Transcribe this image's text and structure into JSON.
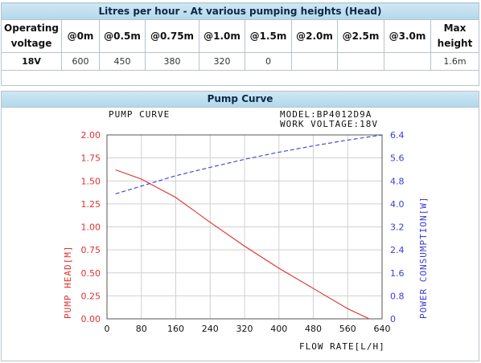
{
  "table": {
    "title": "Litres per hour - At various pumping heights (Head)",
    "headers": [
      "Operating voltage",
      "@0m",
      "@0.5m",
      "@0.75m",
      "@1.0m",
      "@1.5m",
      "@2.0m",
      "@2.5m",
      "@3.0m",
      "Max height"
    ],
    "row": [
      "18V",
      "600",
      "450",
      "380",
      "320",
      "0",
      "",
      "",
      "",
      "1.6m"
    ]
  },
  "curve_section": {
    "title": "Pump Curve"
  },
  "chart_data": {
    "type": "line",
    "title": "PUMP CURVE",
    "model_label": "MODEL:BP4012D9A",
    "voltage_label": "WORK VOLTAGE:18V",
    "xlabel": "FLOW RATE[L/H]",
    "ylabel_left": "PUMP HEAD[M]",
    "ylabel_right": "POWER CONSUMPTION[W]",
    "xlim": [
      0,
      640
    ],
    "ylim_left": [
      0,
      2
    ],
    "ylim_right": [
      0,
      6.4
    ],
    "x_ticks": [
      "0",
      "80",
      "160",
      "240",
      "320",
      "400",
      "480",
      "560",
      "640"
    ],
    "y_left_ticks": [
      "0.00",
      "0.25",
      "0.50",
      "0.75",
      "1.00",
      "1.25",
      "1.50",
      "1.75",
      "2.00"
    ],
    "y_right_ticks": [
      "0",
      "0.8",
      "1.6",
      "2.4",
      "3.2",
      "4.0",
      "4.8",
      "5.6",
      "6.4"
    ],
    "grid": true,
    "series": [
      {
        "name": "PUMP HEAD[M]",
        "axis": "left",
        "color": "#e03030",
        "style": "solid",
        "x": [
          20,
          80,
          160,
          240,
          320,
          400,
          480,
          560,
          610
        ],
        "y": [
          1.62,
          1.52,
          1.32,
          1.05,
          0.79,
          0.55,
          0.33,
          0.11,
          0.0
        ]
      },
      {
        "name": "POWER CONSUMPTION[W]",
        "axis": "right",
        "color": "#3b3bd6",
        "style": "dashed",
        "x": [
          20,
          80,
          160,
          240,
          320,
          400,
          480,
          560,
          640
        ],
        "y": [
          4.35,
          4.62,
          4.98,
          5.27,
          5.55,
          5.8,
          6.02,
          6.22,
          6.4
        ]
      }
    ]
  }
}
